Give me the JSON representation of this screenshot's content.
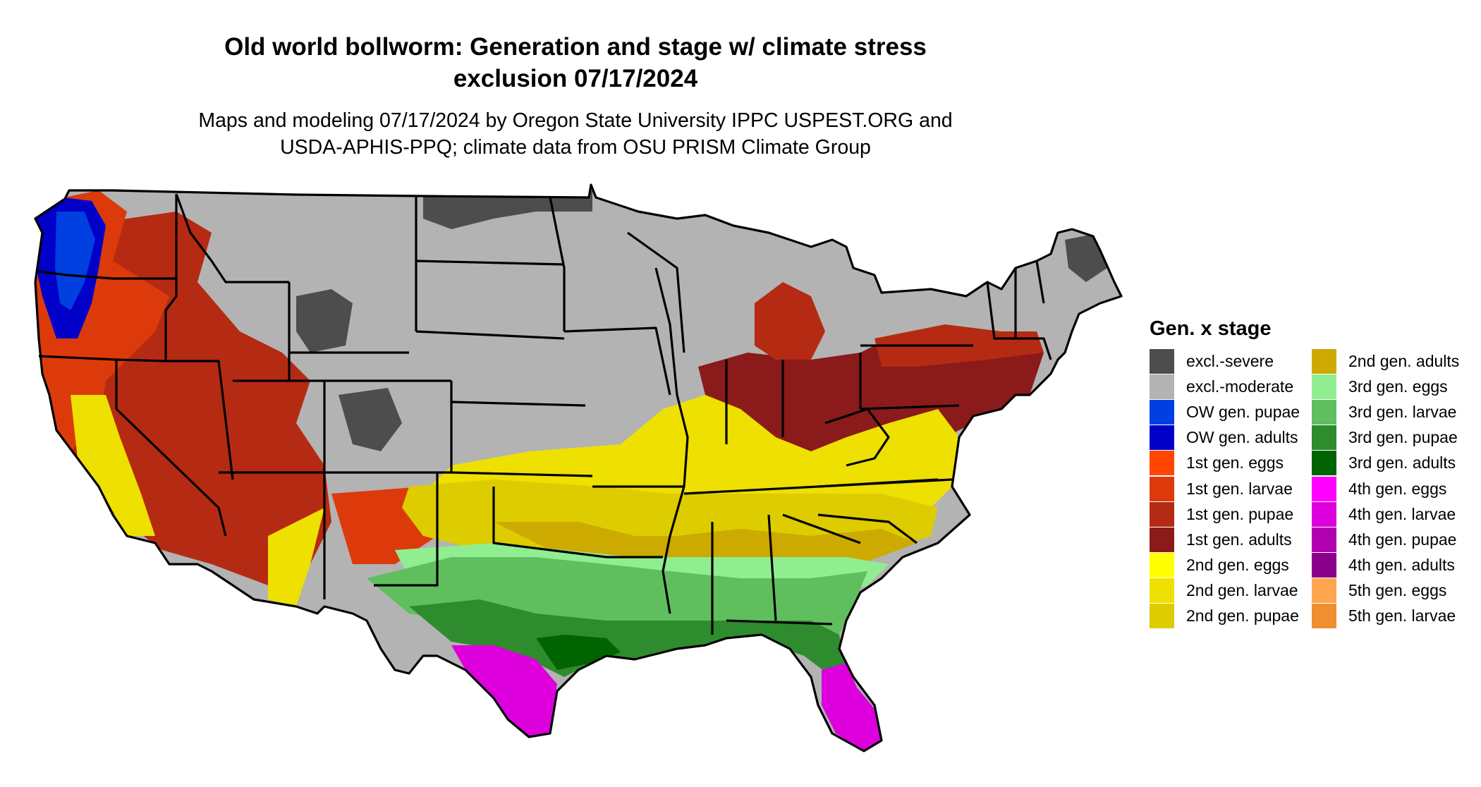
{
  "title_line1": "Old world bollworm: Generation and stage w/ climate stress",
  "title_line2": "exclusion 07/17/2024",
  "subtitle_line1": "Maps and modeling 07/17/2024 by Oregon State University IPPC USPEST.ORG and",
  "subtitle_line2": "USDA-APHIS-PPQ; climate data from OSU PRISM Climate Group",
  "legend": {
    "title": "Gen. x stage",
    "col1": [
      {
        "label": "excl.-severe",
        "color": "#4d4d4d"
      },
      {
        "label": "excl.-moderate",
        "color": "#b3b3b3"
      },
      {
        "label": "OW gen. pupae",
        "color": "#0040e0"
      },
      {
        "label": "OW gen. adults",
        "color": "#0000c8"
      },
      {
        "label": "1st gen. eggs",
        "color": "#ff4500"
      },
      {
        "label": "1st gen. larvae",
        "color": "#dd3a0c"
      },
      {
        "label": "1st gen. pupae",
        "color": "#b52a12"
      },
      {
        "label": "1st gen. adults",
        "color": "#8b1a1a"
      },
      {
        "label": "2nd gen. eggs",
        "color": "#ffff00"
      },
      {
        "label": "2nd gen. larvae",
        "color": "#eee000"
      },
      {
        "label": "2nd gen. pupae",
        "color": "#ddcc00"
      }
    ],
    "col2": [
      {
        "label": "2nd gen. adults",
        "color": "#ccaa00"
      },
      {
        "label": "3rd gen. eggs",
        "color": "#90ee90"
      },
      {
        "label": "3rd gen. larvae",
        "color": "#5fbf5f"
      },
      {
        "label": "3rd gen. pupae",
        "color": "#2e8b2e"
      },
      {
        "label": "3rd gen. adults",
        "color": "#006400"
      },
      {
        "label": "4th gen. eggs",
        "color": "#ff00ff"
      },
      {
        "label": "4th gen. larvae",
        "color": "#dd00dd"
      },
      {
        "label": "4th gen. pupae",
        "color": "#b000b0"
      },
      {
        "label": "4th gen. adults",
        "color": "#8b008b"
      },
      {
        "label": "5th gen. eggs",
        "color": "#ffa54f"
      },
      {
        "label": "5th gen. larvae",
        "color": "#ee9030"
      }
    ]
  }
}
